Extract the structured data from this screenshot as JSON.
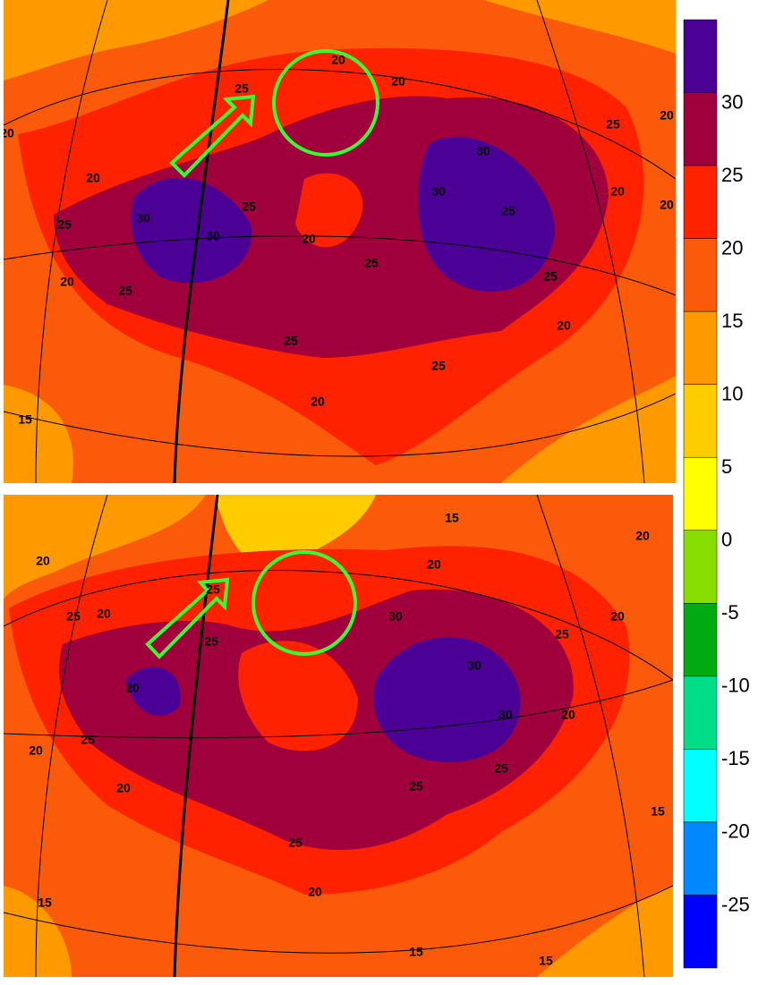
{
  "colorbar": {
    "colors": [
      "#4b0096",
      "#a0003c",
      "#ff2200",
      "#fa5a0a",
      "#ff9900",
      "#ffcc00",
      "#ffff00",
      "#88dd00",
      "#00aa11",
      "#00dd88",
      "#00ffff",
      "#0088ff",
      "#0000ff"
    ],
    "labels": [
      "30",
      "25",
      "20",
      "15",
      "10",
      "5",
      "0",
      "-5",
      "-10",
      "-15",
      "-20",
      "-25"
    ]
  },
  "panels": [
    {
      "contour_labels": [
        "20",
        "20",
        "25",
        "20",
        "20",
        "25",
        "20",
        "25",
        "30",
        "30",
        "25",
        "20",
        "25",
        "30",
        "30",
        "25",
        "20",
        "25",
        "20",
        "25",
        "25",
        "20",
        "15",
        "20",
        "20",
        "25"
      ]
    },
    {
      "contour_labels": [
        "15",
        "20",
        "25",
        "20",
        "25",
        "25",
        "20",
        "20",
        "25",
        "20",
        "30",
        "30",
        "30",
        "25",
        "20",
        "20",
        "25",
        "25",
        "25",
        "20",
        "15",
        "15",
        "15",
        "15",
        "20",
        "20"
      ]
    }
  ]
}
